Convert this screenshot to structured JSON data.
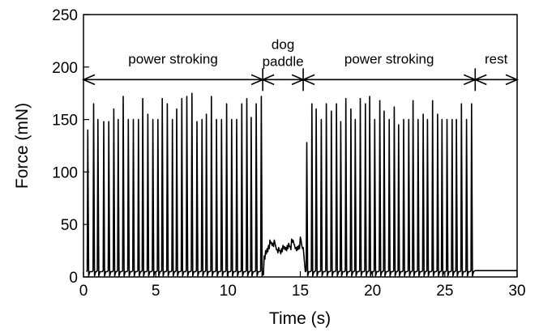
{
  "chart_data": {
    "type": "line",
    "xlabel": "Time (s)",
    "ylabel": "Force (mN)",
    "xlim": [
      0,
      30
    ],
    "ylim": [
      0,
      250
    ],
    "xticks": [
      0,
      5,
      10,
      15,
      20,
      25,
      30
    ],
    "yticks": [
      0,
      50,
      100,
      150,
      200,
      250
    ],
    "grid": false,
    "phases": [
      {
        "label_lines": [
          "power stroking"
        ],
        "start": 0,
        "end": 12.4
      },
      {
        "label_lines": [
          "dog",
          "paddle"
        ],
        "start": 12.4,
        "end": 15.2
      },
      {
        "label_lines": [
          "power stroking"
        ],
        "start": 15.2,
        "end": 27.1
      },
      {
        "label_lines": [
          "rest"
        ],
        "start": 27.1,
        "end": 30
      }
    ],
    "phase_arrow_y": 188,
    "series": [
      {
        "baseline": 5,
        "segments": [
          {
            "kind": "peaks",
            "peak_times": [
              0.3,
              0.7,
              1.0,
              1.4,
              1.75,
              2.1,
              2.4,
              2.75,
              3.1,
              3.45,
              3.8,
              4.1,
              4.45,
              4.8,
              5.15,
              5.45,
              5.8,
              6.15,
              6.45,
              6.8,
              7.15,
              7.5,
              7.85,
              8.2,
              8.5,
              8.85,
              9.2,
              9.55,
              9.9,
              10.25,
              10.6,
              10.95,
              11.3,
              11.6,
              11.95,
              12.3
            ],
            "peak_values": [
              140,
              165,
              150,
              148,
              148,
              160,
              150,
              172,
              150,
              150,
              150,
              170,
              155,
              150,
              150,
              170,
              165,
              150,
              160,
              170,
              172,
              175,
              148,
              150,
              155,
              172,
              150,
              150,
              165,
              150,
              150,
              165,
              170,
              152,
              165,
              172
            ]
          },
          {
            "kind": "plateau",
            "start": 12.4,
            "end": 15.2,
            "values": [
              5,
              20,
              25,
              27,
              30,
              35,
              33,
              32,
              35,
              29,
              26,
              28,
              25,
              27,
              30,
              29,
              28,
              30,
              32,
              29,
              36,
              35,
              30,
              28,
              29,
              30,
              38,
              30,
              28
            ]
          },
          {
            "kind": "peaks",
            "peak_times": [
              15.45,
              15.8,
              16.1,
              16.45,
              16.8,
              17.15,
              17.5,
              17.8,
              18.15,
              18.5,
              18.8,
              19.15,
              19.5,
              19.8,
              20.15,
              20.5,
              20.8,
              21.15,
              21.5,
              21.8,
              22.15,
              22.5,
              22.8,
              23.15,
              23.5,
              23.8,
              24.15,
              24.5,
              24.8,
              25.15,
              25.5,
              25.8,
              26.15,
              26.5,
              26.85
            ],
            "peak_values": [
              128,
              165,
              160,
              150,
              165,
              158,
              165,
              148,
              170,
              160,
              150,
              170,
              165,
              172,
              150,
              168,
              158,
              150,
              162,
              145,
              150,
              150,
              168,
              150,
              155,
              150,
              168,
              155,
              150,
              150,
              150,
              150,
              165,
              150,
              165
            ]
          },
          {
            "kind": "rest",
            "start": 27.1,
            "end": 30,
            "value": 6
          }
        ]
      }
    ]
  }
}
